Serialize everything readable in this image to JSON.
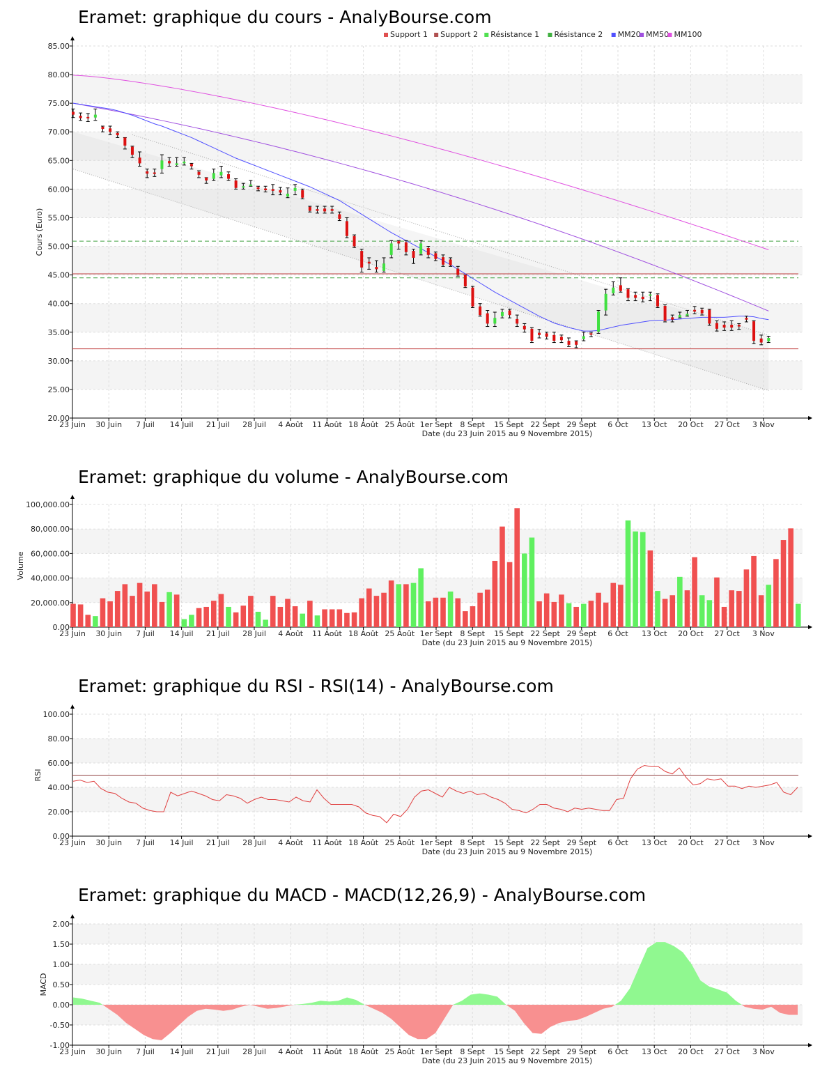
{
  "chart_data": [
    {
      "id": "price",
      "type": "candlestick",
      "title": "Eramet: graphique du cours - AnalyBourse.com",
      "ylabel": "Cours (Euro)",
      "xlabel": "Date (du 23 Juin 2015 au 9 Novembre 2015)",
      "ylim": [
        20,
        85
      ],
      "yticks": [
        "20.00",
        "25.00",
        "30.00",
        "35.00",
        "40.00",
        "45.00",
        "50.00",
        "55.00",
        "60.00",
        "65.00",
        "70.00",
        "75.00",
        "80.00",
        "85.00"
      ],
      "xtick_labels": [
        "23 Juin",
        "30 Juin",
        "7 Juil",
        "14 Juil",
        "21 Juil",
        "28 Juil",
        "4 Août",
        "11 Août",
        "18 Août",
        "25 Août",
        "1er Sept",
        "8 Sept",
        "15 Sept",
        "22 Sept",
        "29 Sept",
        "6 Oct",
        "13 Oct",
        "20 Oct",
        "27 Oct",
        "3 Nov"
      ],
      "legend": [
        {
          "name": "Support 1",
          "color": "#e05050"
        },
        {
          "name": "Support 2",
          "color": "#b05050"
        },
        {
          "name": "Résistance 1",
          "color": "#50e050"
        },
        {
          "name": "Résistance 2",
          "color": "#40b040"
        },
        {
          "name": "MM20",
          "color": "#5050ff"
        },
        {
          "name": "MM50",
          "color": "#a050e0"
        },
        {
          "name": "MM100",
          "color": "#e050e0"
        }
      ],
      "support1": 32.1,
      "support2": 45.2,
      "resistance1": 44.5,
      "resistance2": 50.9,
      "colors": {
        "up": "#40e040",
        "down": "#dd1010",
        "wick": "#000000",
        "mm20": "#5050ff",
        "mm50": "#a050e0",
        "mm100": "#e050e0",
        "support": "#c04040",
        "resistance": "#40a040"
      },
      "close": [
        73.0,
        72.4,
        72.4,
        73.0,
        70.5,
        70.0,
        69.4,
        67.6,
        66.0,
        64.5,
        62.7,
        62.7,
        65.0,
        64.5,
        64.5,
        64.8,
        64.0,
        62.5,
        61.5,
        62.8,
        63.0,
        61.8,
        60.2,
        60.5,
        60.8,
        60.0,
        59.8,
        59.7,
        59.4,
        59.2,
        60.2,
        58.5,
        56.2,
        56.2,
        56.1,
        56.2,
        54.8,
        51.8,
        50.0,
        46.3,
        47.0,
        46.0,
        47.0,
        50.5,
        50.5,
        49.0,
        48.0,
        50.5,
        48.5,
        47.8,
        46.8,
        46.7,
        45.0,
        43.0,
        39.5,
        38.0,
        36.5,
        37.5,
        38.5,
        38.0,
        36.5,
        35.5,
        33.5,
        34.5,
        34.2,
        33.5,
        33.6,
        32.8,
        32.8,
        34.3,
        34.6,
        38.6,
        41.7,
        42.8,
        42.2,
        41.0,
        41.0,
        40.8,
        41.6,
        39.5,
        37.0,
        37.2,
        38.0,
        38.2,
        38.6,
        38.3,
        36.5,
        35.6,
        35.8,
        35.8,
        36.0,
        37.2,
        33.5,
        33.2,
        34.0
      ],
      "open": [
        73.5,
        72.8,
        72.6,
        72.5,
        70.9,
        70.6,
        69.8,
        69.0,
        67.4,
        65.5,
        63.1,
        62.9,
        63.5,
        64.9,
        64.2,
        64.5,
        64.4,
        63.0,
        62.0,
        61.8,
        62.4,
        62.6,
        61.5,
        60.3,
        60.6,
        60.3,
        60.1,
        60.0,
        59.8,
        58.7,
        59.7,
        59.8,
        56.9,
        56.5,
        56.6,
        56.5,
        55.6,
        54.4,
        51.8,
        49.2,
        47.3,
        46.4,
        45.7,
        48.5,
        50.9,
        50.7,
        49.2,
        48.7,
        49.7,
        48.8,
        48.1,
        47.7,
        46.1,
        45.0,
        42.8,
        39.5,
        38.3,
        36.5,
        37.8,
        38.8,
        37.3,
        36.1,
        35.6,
        34.9,
        34.8,
        34.5,
        34.2,
        33.5,
        33.4,
        33.8,
        34.8,
        35.1,
        38.8,
        41.8,
        43.2,
        42.5,
        41.5,
        41.2,
        41.4,
        41.5,
        39.6,
        37.6,
        37.6,
        37.9,
        38.9,
        38.9,
        38.9,
        36.6,
        36.3,
        36.3,
        36.3,
        37.5,
        36.9,
        33.9,
        33.4
      ],
      "high": [
        74.0,
        73.3,
        73.2,
        74.0,
        71.0,
        71.0,
        70.0,
        69.0,
        67.5,
        66.5,
        63.5,
        63.5,
        66.0,
        65.5,
        65.5,
        65.5,
        64.5,
        63.2,
        62.0,
        63.5,
        64.0,
        63.0,
        61.8,
        61.0,
        61.5,
        60.5,
        60.5,
        60.8,
        60.3,
        60.2,
        60.8,
        60.0,
        57.0,
        57.0,
        57.0,
        57.0,
        56.0,
        55.0,
        52.0,
        49.5,
        48.0,
        47.5,
        48.0,
        51.0,
        51.0,
        51.0,
        49.5,
        51.0,
        50.0,
        49.0,
        48.5,
        48.0,
        46.5,
        45.0,
        43.0,
        40.0,
        38.8,
        38.5,
        39.0,
        39.0,
        38.0,
        36.5,
        35.8,
        35.5,
        35.0,
        35.0,
        34.5,
        34.0,
        33.5,
        35.0,
        35.0,
        38.8,
        42.5,
        43.8,
        44.5,
        42.6,
        42.0,
        42.0,
        42.0,
        41.7,
        39.8,
        38.0,
        38.5,
        38.8,
        39.5,
        39.2,
        39.0,
        37.0,
        36.8,
        37.0,
        36.5,
        37.8,
        37.0,
        34.5,
        34.3
      ],
      "low": [
        72.5,
        72.0,
        71.8,
        72.0,
        70.0,
        69.5,
        69.0,
        67.0,
        65.5,
        64.0,
        62.0,
        62.2,
        62.8,
        64.0,
        64.0,
        64.2,
        63.5,
        62.0,
        61.0,
        61.5,
        62.0,
        61.5,
        60.0,
        60.0,
        60.5,
        59.7,
        59.5,
        59.0,
        59.0,
        58.5,
        59.0,
        58.3,
        56.0,
        55.8,
        55.8,
        55.8,
        54.5,
        51.5,
        49.8,
        45.5,
        46.0,
        45.5,
        45.5,
        48.0,
        49.5,
        48.5,
        47.0,
        48.5,
        48.0,
        47.5,
        46.5,
        46.5,
        44.8,
        42.8,
        39.3,
        37.8,
        36.0,
        36.0,
        37.5,
        37.5,
        36.0,
        35.0,
        33.2,
        34.0,
        33.8,
        33.2,
        33.2,
        32.5,
        32.3,
        33.5,
        34.2,
        34.8,
        38.0,
        41.5,
        42.0,
        40.5,
        40.5,
        40.3,
        40.5,
        39.3,
        36.8,
        36.8,
        37.5,
        37.8,
        38.2,
        38.0,
        36.2,
        35.2,
        35.3,
        35.3,
        35.5,
        36.8,
        33.0,
        32.8,
        33.2
      ],
      "mm20": [
        75.0,
        74.8,
        74.6,
        74.4,
        74.2,
        74.0,
        73.7,
        73.3,
        72.9,
        72.4,
        71.9,
        71.4,
        71.0,
        70.5,
        70.0,
        69.5,
        69.0,
        68.4,
        67.8,
        67.2,
        66.6,
        66.0,
        65.4,
        64.9,
        64.4,
        63.9,
        63.4,
        62.9,
        62.4,
        61.9,
        61.4,
        60.9,
        60.4,
        59.8,
        59.2,
        58.6,
        58.0,
        57.2,
        56.4,
        55.6,
        54.8,
        54.0,
        53.2,
        52.4,
        51.7,
        51.0,
        50.3,
        49.6,
        48.9,
        48.2,
        47.5,
        46.8,
        46.0,
        45.2,
        44.4,
        43.6,
        42.8,
        42.0,
        41.3,
        40.6,
        39.9,
        39.2,
        38.5,
        37.8,
        37.2,
        36.6,
        36.2,
        35.8,
        35.5,
        35.2,
        35.2,
        35.3,
        35.6,
        35.9,
        36.2,
        36.4,
        36.6,
        36.8,
        37.0,
        37.1,
        37.1,
        37.2,
        37.3,
        37.4,
        37.5,
        37.6,
        37.6,
        37.6,
        37.6,
        37.7,
        37.8,
        37.8,
        37.7,
        37.4,
        37.2
      ]
    },
    {
      "id": "volume",
      "type": "bar",
      "title": "Eramet: graphique du volume - AnalyBourse.com",
      "ylabel": "Volume",
      "xlabel": "Date (du 23 Juin 2015 au 9 Novembre 2015)",
      "ylim": [
        0,
        100000
      ],
      "yticks": [
        "0.00",
        "20,000.00",
        "40,000.00",
        "60,000.00",
        "80,000.00",
        "100,000.00"
      ],
      "xtick_labels": [
        "23 Juin",
        "30 Juin",
        "7 Juil",
        "14 Juil",
        "21 Juil",
        "28 Juil",
        "4 Août",
        "11 Août",
        "18 Août",
        "25 Août",
        "1er Sept",
        "8 Sept",
        "15 Sept",
        "22 Sept",
        "29 Sept",
        "6 Oct",
        "13 Oct",
        "20 Oct",
        "27 Oct",
        "3 Nov"
      ],
      "colors": {
        "up": "#60f060",
        "down": "#f05050"
      },
      "values": [
        19000,
        18500,
        10000,
        9000,
        23500,
        21000,
        29500,
        35000,
        25500,
        36000,
        29000,
        35000,
        20500,
        28500,
        26500,
        6500,
        10000,
        15500,
        16500,
        21500,
        27000,
        16500,
        12000,
        17500,
        25500,
        12500,
        6000,
        25500,
        16500,
        23000,
        17000,
        11000,
        21500,
        9500,
        14500,
        14500,
        14500,
        11500,
        12000,
        23500,
        31500,
        25500,
        28000,
        38000,
        35000,
        35000,
        36000,
        48000,
        21000,
        24000,
        24000,
        29000,
        23500,
        13000,
        17000,
        28000,
        30500,
        54000,
        82000,
        53000,
        97000,
        60000,
        73000,
        21000,
        27500,
        20500,
        26500,
        19500,
        16500,
        19000,
        21500,
        28000,
        20000,
        36000,
        34500,
        87000,
        78000,
        77500,
        62500,
        29500,
        23000,
        26000,
        41000,
        30000,
        57000,
        26000,
        22000,
        40500,
        16500,
        30000,
        29500,
        47000,
        58000,
        26000,
        34500,
        55500,
        71000,
        80500,
        19000
      ],
      "up_flags": [
        0,
        0,
        0,
        1,
        0,
        0,
        0,
        0,
        0,
        0,
        0,
        0,
        0,
        1,
        0,
        1,
        1,
        0,
        0,
        0,
        0,
        1,
        0,
        0,
        0,
        1,
        1,
        0,
        0,
        0,
        0,
        1,
        0,
        1,
        0,
        0,
        0,
        0,
        0,
        0,
        0,
        0,
        0,
        0,
        1,
        0,
        1,
        1,
        0,
        0,
        0,
        1,
        0,
        0,
        0,
        0,
        0,
        0,
        0,
        0,
        0,
        1,
        1,
        0,
        0,
        0,
        0,
        1,
        0,
        1,
        0,
        0,
        0,
        0,
        0,
        1,
        1,
        1,
        0,
        1,
        0,
        0,
        1,
        0,
        0,
        1,
        1,
        0,
        0,
        0,
        0,
        0,
        0,
        0,
        1,
        0,
        0,
        0,
        1
      ]
    },
    {
      "id": "rsi",
      "type": "line",
      "title": "Eramet: graphique du RSI - RSI(14) - AnalyBourse.com",
      "ylabel": "RSI",
      "xlabel": "Date (du 23 Juin 2015 au 9 Novembre 2015)",
      "ylim": [
        0,
        100
      ],
      "yticks": [
        "0.00",
        "20.00",
        "40.00",
        "60.00",
        "80.00",
        "100.00"
      ],
      "xtick_labels": [
        "23 Juin",
        "30 Juin",
        "7 Juil",
        "14 Juil",
        "21 Juil",
        "28 Juil",
        "4 Août",
        "11 Août",
        "18 Août",
        "25 Août",
        "1er Sept",
        "8 Sept",
        "15 Sept",
        "22 Sept",
        "29 Sept",
        "6 Oct",
        "13 Oct",
        "20 Oct",
        "27 Oct",
        "3 Nov"
      ],
      "reference_line": 50,
      "colors": {
        "line": "#e04040",
        "reference": "#904040"
      },
      "values": [
        45,
        46,
        44,
        45,
        39,
        36,
        35,
        31,
        28,
        27,
        23,
        21,
        20,
        20,
        36,
        33,
        35,
        37,
        35,
        33,
        30,
        29,
        34,
        33,
        31,
        27,
        30,
        32,
        30,
        30,
        29,
        28,
        32,
        29,
        28,
        38,
        31,
        26,
        26,
        26,
        26,
        24,
        19,
        17,
        16,
        11,
        18,
        16,
        22,
        32,
        37,
        38,
        35,
        32,
        40,
        37,
        35,
        37,
        34,
        35,
        32,
        30,
        27,
        22,
        21,
        19,
        22,
        26,
        26,
        23,
        22,
        20,
        23,
        22,
        23,
        22,
        21,
        21,
        30,
        31,
        47,
        55,
        58,
        57,
        57,
        53,
        51,
        56,
        48,
        42,
        43,
        47,
        46,
        47,
        41,
        41,
        39,
        41,
        40,
        41,
        42,
        44,
        36,
        34,
        40
      ]
    },
    {
      "id": "macd",
      "type": "area",
      "title": "Eramet: graphique du MACD - MACD(12,26,9) - AnalyBourse.com",
      "ylabel": "MACD",
      "xlabel": "Date (du 23 Juin 2015 au 9 Novembre 2015)",
      "ylim": [
        -1,
        2
      ],
      "yticks": [
        "-1.00",
        "-0.50",
        "0.00",
        "0.50",
        "1.00",
        "1.50",
        "2.00"
      ],
      "xtick_labels": [
        "23 Juin",
        "30 Juin",
        "7 Juil",
        "14 Juil",
        "21 Juil",
        "28 Juil",
        "4 Août",
        "11 Août",
        "18 Août",
        "25 Août",
        "1er Sept",
        "8 Sept",
        "15 Sept",
        "22 Sept",
        "29 Sept",
        "6 Oct",
        "13 Oct",
        "20 Oct",
        "27 Oct",
        "3 Nov"
      ],
      "colors": {
        "positive": "#90f890",
        "negative": "#f89090"
      },
      "values": [
        0.18,
        0.15,
        0.1,
        0.05,
        -0.1,
        -0.25,
        -0.45,
        -0.6,
        -0.75,
        -0.85,
        -0.88,
        -0.7,
        -0.5,
        -0.3,
        -0.15,
        -0.1,
        -0.12,
        -0.15,
        -0.12,
        -0.05,
        0.0,
        -0.05,
        -0.1,
        -0.08,
        -0.04,
        0.0,
        0.02,
        0.05,
        0.1,
        0.08,
        0.1,
        0.18,
        0.12,
        0.0,
        -0.1,
        -0.2,
        -0.35,
        -0.55,
        -0.75,
        -0.85,
        -0.85,
        -0.7,
        -0.35,
        0.0,
        0.1,
        0.25,
        0.28,
        0.25,
        0.2,
        0.0,
        -0.15,
        -0.45,
        -0.7,
        -0.72,
        -0.55,
        -0.45,
        -0.4,
        -0.38,
        -0.3,
        -0.2,
        -0.1,
        -0.05,
        0.1,
        0.4,
        0.9,
        1.4,
        1.55,
        1.55,
        1.45,
        1.3,
        1.0,
        0.6,
        0.45,
        0.38,
        0.3,
        0.1,
        -0.05,
        -0.1,
        -0.12,
        -0.05,
        -0.2,
        -0.25,
        -0.25
      ]
    }
  ]
}
